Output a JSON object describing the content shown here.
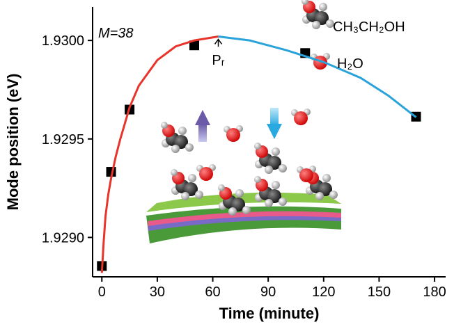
{
  "chart_data": {
    "type": "scatter",
    "x_label": "Time (minute)",
    "y_label": "Mode position (eV)",
    "xlim": [
      -5,
      186
    ],
    "ylim": [
      1.9288,
      1.93017
    ],
    "xticks": [
      0,
      30,
      60,
      90,
      120,
      150,
      180
    ],
    "yticks": [
      {
        "value": 1.929,
        "label": "1.9290"
      },
      {
        "value": 1.9295,
        "label": "1.9295"
      },
      {
        "value": 1.93,
        "label": "1.9300"
      }
    ],
    "series": [
      {
        "style": "marker",
        "color": "#000000",
        "x": [
          0,
          5,
          15,
          50,
          110,
          170
        ],
        "values": [
          1.928855,
          1.929333,
          1.929649,
          1.929975,
          1.929936,
          1.929613
        ]
      },
      {
        "style": "line",
        "color": "#e8342a",
        "x": [
          0,
          1,
          2,
          3.5,
          5,
          7.5,
          10,
          15,
          20,
          30,
          40,
          50,
          63
        ],
        "values": [
          1.92882,
          1.92898,
          1.92911,
          1.92922,
          1.9293,
          1.92941,
          1.9295,
          1.92966,
          1.92977,
          1.9299,
          1.92997,
          1.93,
          1.93002
        ]
      },
      {
        "style": "line",
        "color": "#29a3da",
        "x": [
          63,
          80,
          100,
          120,
          140,
          155,
          170
        ],
        "values": [
          1.93002,
          1.93,
          1.92995,
          1.92989,
          1.92981,
          1.92972,
          1.92961
        ]
      }
    ],
    "annotations": [
      {
        "text": "M=38",
        "x": -2,
        "y": 1.93004
      },
      {
        "text": "Pᵣ",
        "x": 63,
        "y": 1.92994
      }
    ],
    "legend": [
      "CH₃CH₂OH",
      "H₂O"
    ]
  }
}
